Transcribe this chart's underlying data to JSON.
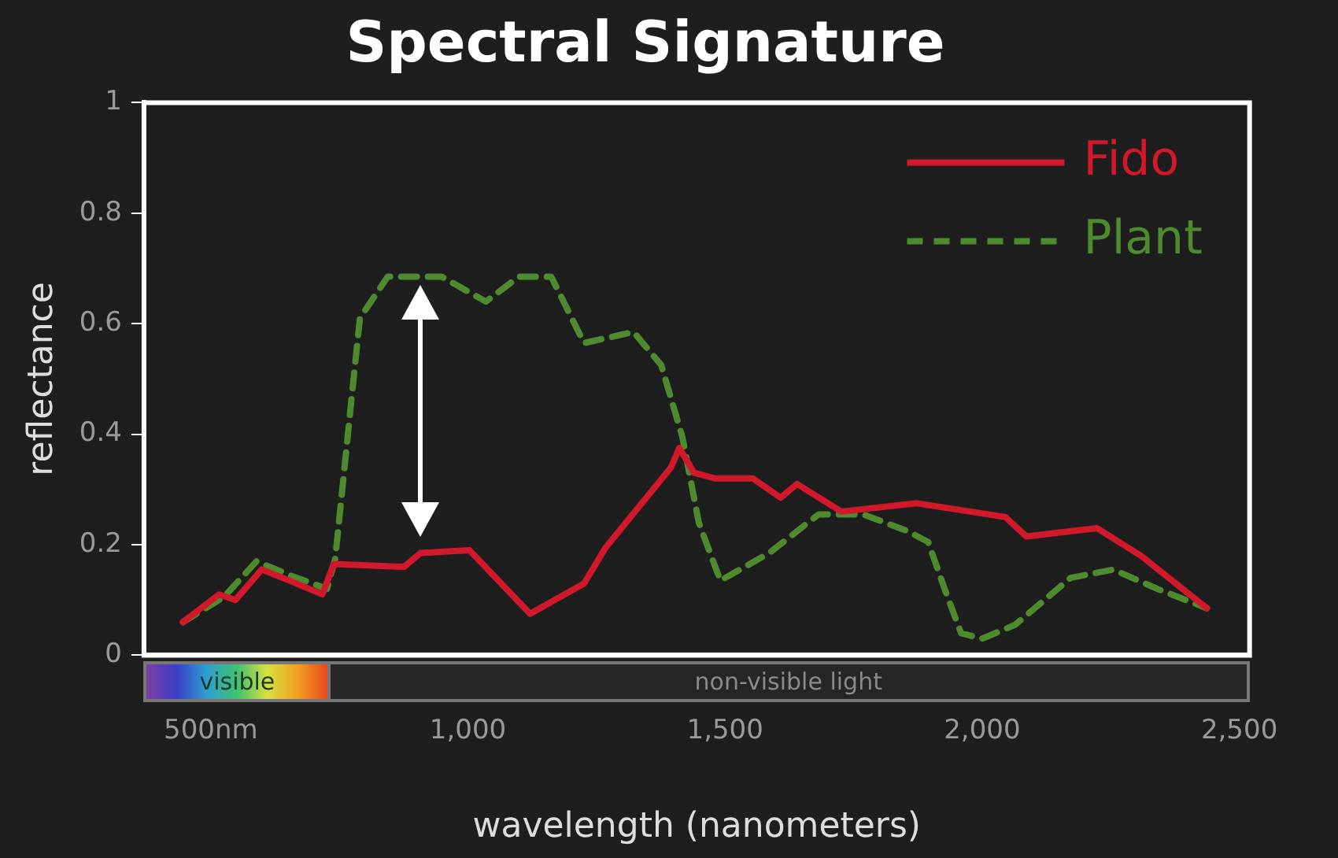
{
  "chart_data": {
    "type": "line",
    "title": "Spectral Signature",
    "xlabel": "wavelength (nanometers)",
    "ylabel": "reflectance",
    "xlim": [
      370,
      2520
    ],
    "ylim": [
      0,
      1
    ],
    "xticks": [
      {
        "value": 500,
        "label": "500nm"
      },
      {
        "value": 1000,
        "label": "1,000"
      },
      {
        "value": 1500,
        "label": "1,500"
      },
      {
        "value": 2000,
        "label": "2,000"
      },
      {
        "value": 2500,
        "label": "2,500"
      }
    ],
    "yticks": [
      0,
      {
        "value": 0.2,
        "label": "0.2"
      },
      {
        "value": 0.4,
        "label": "0.4"
      },
      {
        "value": 0.6,
        "label": "0.6"
      },
      {
        "value": 0.8,
        "label": "0.8"
      },
      1
    ],
    "grid": false,
    "legend": "top right",
    "marker": "none",
    "annotations": [
      "visible",
      "non-visible light"
    ],
    "series": [
      {
        "name": "Fido",
        "color": "#d0192b",
        "line_style": "solid",
        "x": [
          446,
          516,
          548,
          599,
          653,
          717,
          739,
          876,
          908,
          1003,
          1121,
          1226,
          1268,
          1395,
          1411,
          1440,
          1481,
          1554,
          1608,
          1640,
          1726,
          1873,
          2045,
          2086,
          2223,
          2309,
          2437
        ],
        "values": [
          0.06,
          0.11,
          0.1,
          0.155,
          0.135,
          0.11,
          0.165,
          0.16,
          0.185,
          0.19,
          0.075,
          0.13,
          0.195,
          0.34,
          0.375,
          0.33,
          0.32,
          0.32,
          0.285,
          0.31,
          0.26,
          0.275,
          0.25,
          0.215,
          0.23,
          0.18,
          0.085
        ]
      },
      {
        "name": "Plant",
        "color": "#4e8a2e",
        "line_style": "dashed",
        "x": [
          446,
          525,
          589,
          653,
          726,
          742,
          771,
          790,
          844,
          949,
          1035,
          1099,
          1162,
          1226,
          1322,
          1376,
          1417,
          1449,
          1491,
          1586,
          1682,
          1768,
          1854,
          1895,
          1927,
          1959,
          2000,
          2064,
          2172,
          2255,
          2341,
          2437
        ],
        "values": [
          0.06,
          0.105,
          0.17,
          0.145,
          0.12,
          0.175,
          0.44,
          0.61,
          0.685,
          0.685,
          0.64,
          0.685,
          0.685,
          0.565,
          0.585,
          0.525,
          0.395,
          0.24,
          0.135,
          0.185,
          0.255,
          0.255,
          0.225,
          0.205,
          0.12,
          0.04,
          0.03,
          0.055,
          0.14,
          0.155,
          0.12,
          0.085
        ]
      }
    ]
  }
}
